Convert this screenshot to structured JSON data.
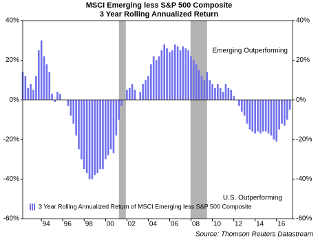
{
  "chart_data": {
    "type": "bar",
    "title": "MSCI Emerging less S&P 500 Composite",
    "subtitle": "3 Year Rolling Annualized Return",
    "annotations": [
      "Emerging Outperforming",
      "U.S. Outperforming"
    ],
    "source": "Source: Thomson Reuters Datastream",
    "legend": "lower left",
    "xlim": [
      1992.25,
      2017.5
    ],
    "xticks": [
      {
        "value": 1994,
        "label": "94"
      },
      {
        "value": 1996,
        "label": "96"
      },
      {
        "value": 1998,
        "label": "98"
      },
      {
        "value": 2000,
        "label": "00"
      },
      {
        "value": 2002,
        "label": "02"
      },
      {
        "value": 2004,
        "label": "04"
      },
      {
        "value": 2006,
        "label": "06"
      },
      {
        "value": 2008,
        "label": "08"
      },
      {
        "value": 2010,
        "label": "10"
      },
      {
        "value": 2012,
        "label": "12"
      },
      {
        "value": 2014,
        "label": "14"
      },
      {
        "value": 2016,
        "label": "16"
      }
    ],
    "ylim": [
      -60,
      40
    ],
    "yticks": [
      {
        "value": -60,
        "label": "-60%"
      },
      {
        "value": -40,
        "label": "-40%"
      },
      {
        "value": -20,
        "label": "-20%"
      },
      {
        "value": 0,
        "label": "0%"
      },
      {
        "value": 20,
        "label": "20%"
      },
      {
        "value": 40,
        "label": "40%"
      }
    ],
    "y2lim": [
      -60,
      40
    ],
    "y2ticks": [
      {
        "value": -60,
        "label": "-60%"
      },
      {
        "value": -40,
        "label": "-40%"
      },
      {
        "value": -20,
        "label": "-20%"
      },
      {
        "value": 0,
        "label": "0%"
      },
      {
        "value": 20,
        "label": "20%"
      },
      {
        "value": 40,
        "label": "40%"
      }
    ],
    "shaded_regions": [
      [
        2001.25,
        2001.9
      ],
      [
        2007.95,
        2009.5
      ]
    ],
    "shade_color": "#b3b3b3",
    "x": [
      1992.25,
      1992.5,
      1992.75,
      1993,
      1993.25,
      1993.5,
      1993.75,
      1994,
      1994.25,
      1994.5,
      1994.75,
      1995,
      1995.25,
      1995.5,
      1995.75,
      1996,
      1996.25,
      1996.5,
      1996.75,
      1997,
      1997.25,
      1997.5,
      1997.75,
      1998,
      1998.25,
      1998.5,
      1998.75,
      1999,
      1999.25,
      1999.5,
      1999.75,
      2000,
      2000.25,
      2000.5,
      2000.75,
      2001,
      2001.25,
      2001.5,
      2001.75,
      2002,
      2002.25,
      2002.5,
      2002.75,
      2003,
      2003.25,
      2003.5,
      2003.75,
      2004,
      2004.25,
      2004.5,
      2004.75,
      2005,
      2005.25,
      2005.5,
      2005.75,
      2006,
      2006.25,
      2006.5,
      2006.75,
      2007,
      2007.25,
      2007.5,
      2007.75,
      2008,
      2008.25,
      2008.5,
      2008.75,
      2009,
      2009.25,
      2009.5,
      2009.75,
      2010,
      2010.25,
      2010.5,
      2010.75,
      2011,
      2011.25,
      2011.5,
      2011.75,
      2012,
      2012.25,
      2012.5,
      2012.75,
      2013,
      2013.25,
      2013.5,
      2013.75,
      2014,
      2014.25,
      2014.5,
      2014.75,
      2015,
      2015.25,
      2015.5,
      2015.75,
      2016,
      2016.25,
      2016.5,
      2016.75,
      2017,
      2017.25
    ],
    "series": [
      {
        "name": "3 Year Rolling Annualized Return of MSCI Emerging less S&P 500 Composite",
        "color": "#7070ee",
        "values": [
          14,
          12,
          6,
          8,
          5,
          12,
          25,
          30,
          22,
          18,
          14,
          3,
          -1,
          4,
          3,
          0,
          0,
          -3,
          -8,
          -12,
          -18,
          -25,
          -30,
          -35,
          -37,
          -40,
          -40,
          -38,
          -37,
          -35,
          -35,
          -30,
          -28,
          -25,
          -27,
          -18,
          -10,
          -3,
          0,
          5,
          6,
          8,
          5,
          0,
          4,
          8,
          10,
          12,
          18,
          22,
          20,
          22,
          25,
          28,
          26,
          24,
          25,
          28,
          27,
          25,
          27,
          26,
          25,
          22,
          20,
          18,
          15,
          12,
          10,
          14,
          10,
          8,
          6,
          8,
          6,
          4,
          8,
          6,
          5,
          2,
          0,
          -3,
          -6,
          -8,
          -12,
          -15,
          -16,
          -17,
          -16,
          -17,
          -16,
          -16,
          -17,
          -18,
          -20,
          -21,
          -15,
          -12,
          -13,
          -10,
          -5
        ]
      }
    ]
  }
}
